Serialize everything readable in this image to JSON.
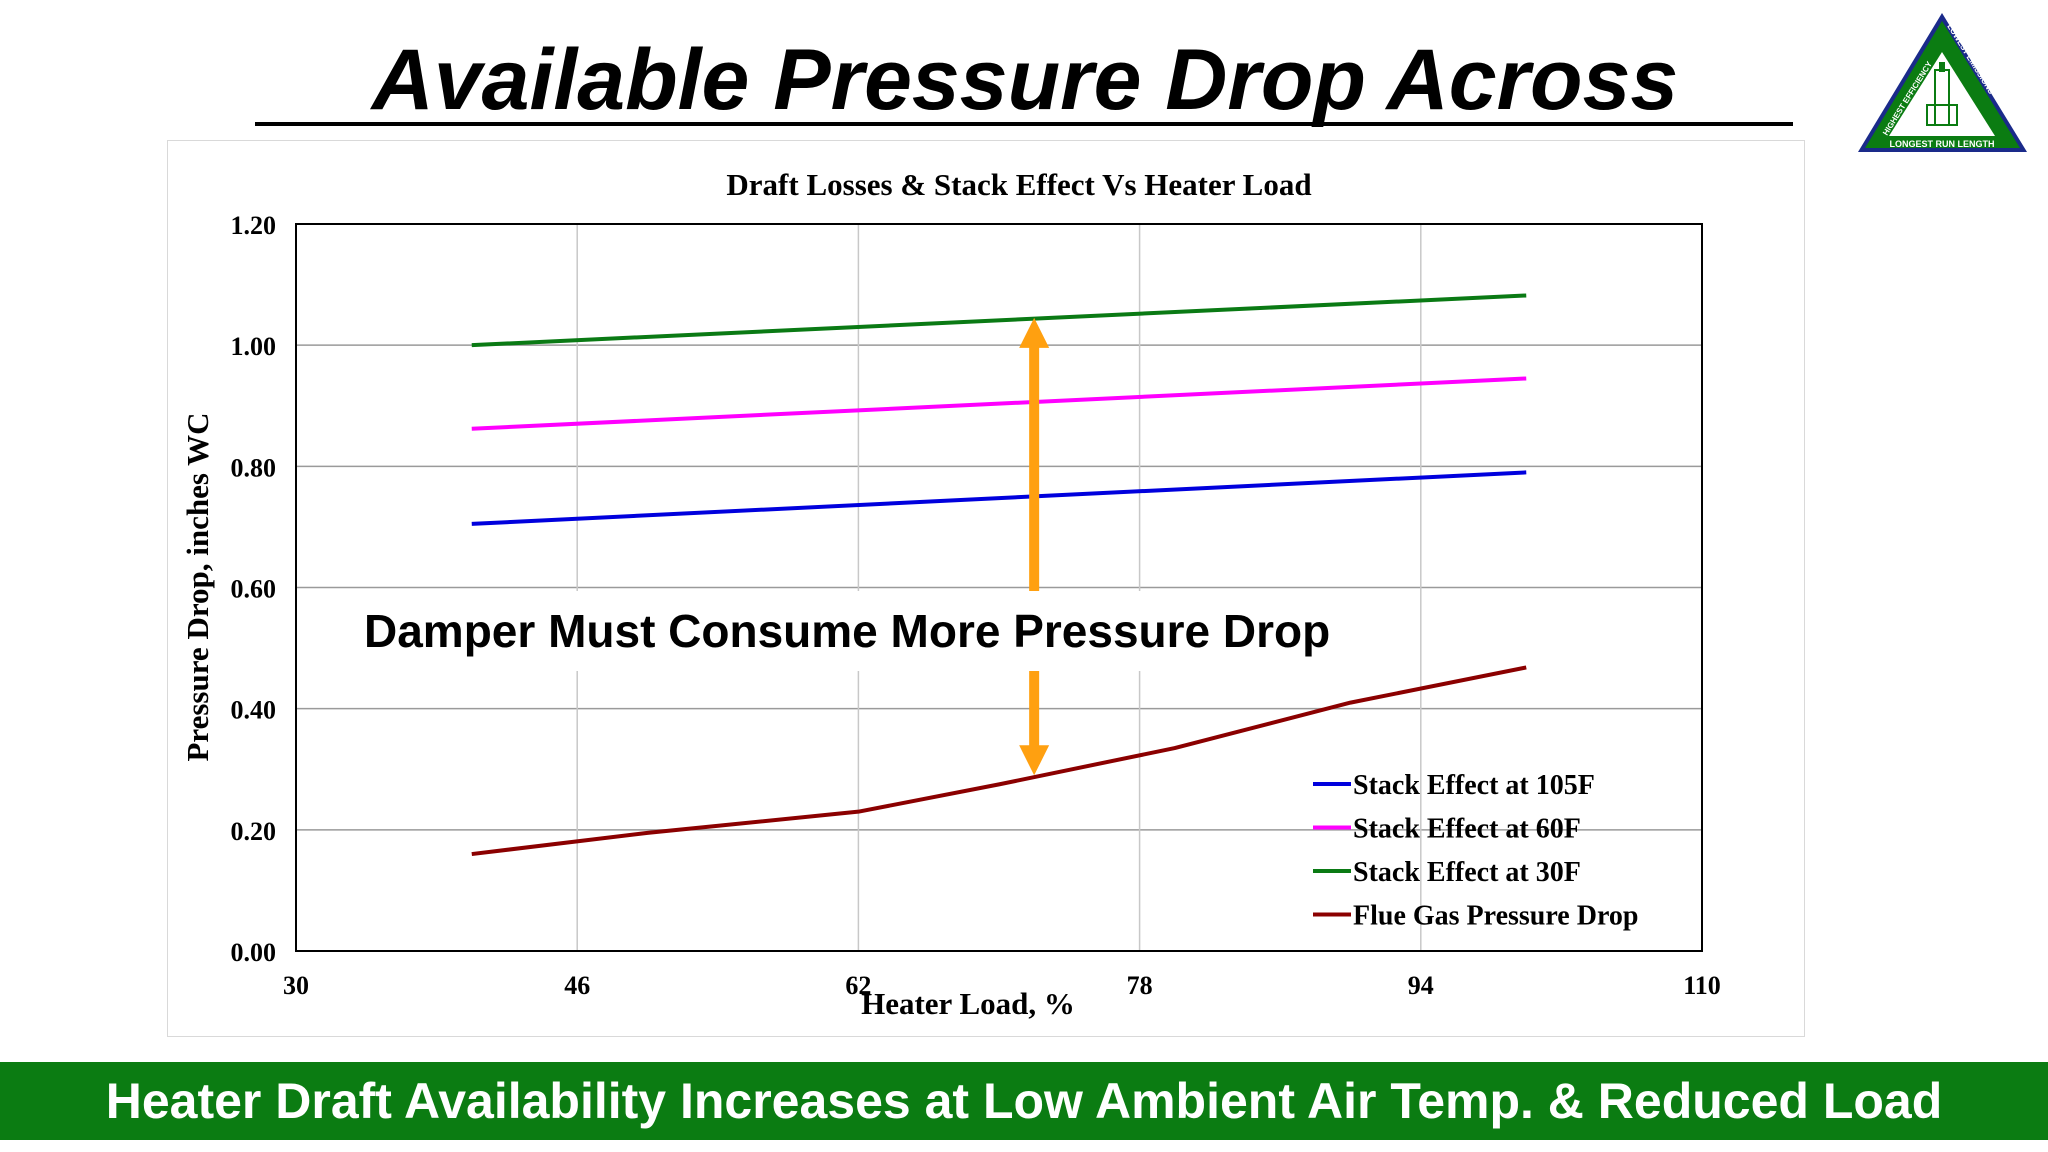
{
  "slide": {
    "title": "Available Pressure Drop Across Damper",
    "footer": "Heater Draft Availability Increases at Low Ambient Air Temp. & Reduced Load"
  },
  "logo": {
    "icon": "triangle-heater-logo-icon",
    "text_left": "HIGHEST EFFICIENCY",
    "text_right": "LOWEST EMISSIONS",
    "text_bottom": "LONGEST RUN LENGTH",
    "colors": {
      "fill": "#0b7c12",
      "border": "#1a2a8a",
      "inner": "#ffffff"
    }
  },
  "chart_data": {
    "type": "line",
    "title": "Draft Losses & Stack Effect Vs Heater Load",
    "xlabel": "Heater Load, %",
    "ylabel": "Pressure Drop, inches WC",
    "xlim": [
      30,
      110
    ],
    "ylim": [
      0,
      1.2
    ],
    "xticks": [
      "30",
      "46",
      "62",
      "78",
      "94",
      "110"
    ],
    "yticks": [
      "0.00",
      "0.20",
      "0.40",
      "0.60",
      "0.80",
      "1.00",
      "1.20"
    ],
    "grid": true,
    "legend_position": "bottom-right",
    "series": [
      {
        "name": "Stack Effect at 105F",
        "color": "#0000dd",
        "x": [
          40,
          100
        ],
        "y": [
          0.705,
          0.79
        ]
      },
      {
        "name": "Stack Effect at 60F",
        "color": "#ff00ff",
        "x": [
          40,
          100
        ],
        "y": [
          0.862,
          0.945
        ]
      },
      {
        "name": "Stack Effect at 30F",
        "color": "#0a7a14",
        "x": [
          40,
          100
        ],
        "y": [
          1.0,
          1.082
        ]
      },
      {
        "name": "Flue Gas Pressure Drop",
        "color": "#8b0000",
        "x": [
          40,
          50,
          62,
          70,
          80,
          90,
          100
        ],
        "y": [
          0.16,
          0.195,
          0.23,
          0.275,
          0.335,
          0.41,
          0.468
        ]
      }
    ],
    "annotation": {
      "text": "Damper Must Consume More Pressure Drop",
      "arrow_x": 72,
      "arrow_y_top": 1.045,
      "arrow_y_bottom": 0.29,
      "arrow_color": "#ffa010"
    }
  }
}
